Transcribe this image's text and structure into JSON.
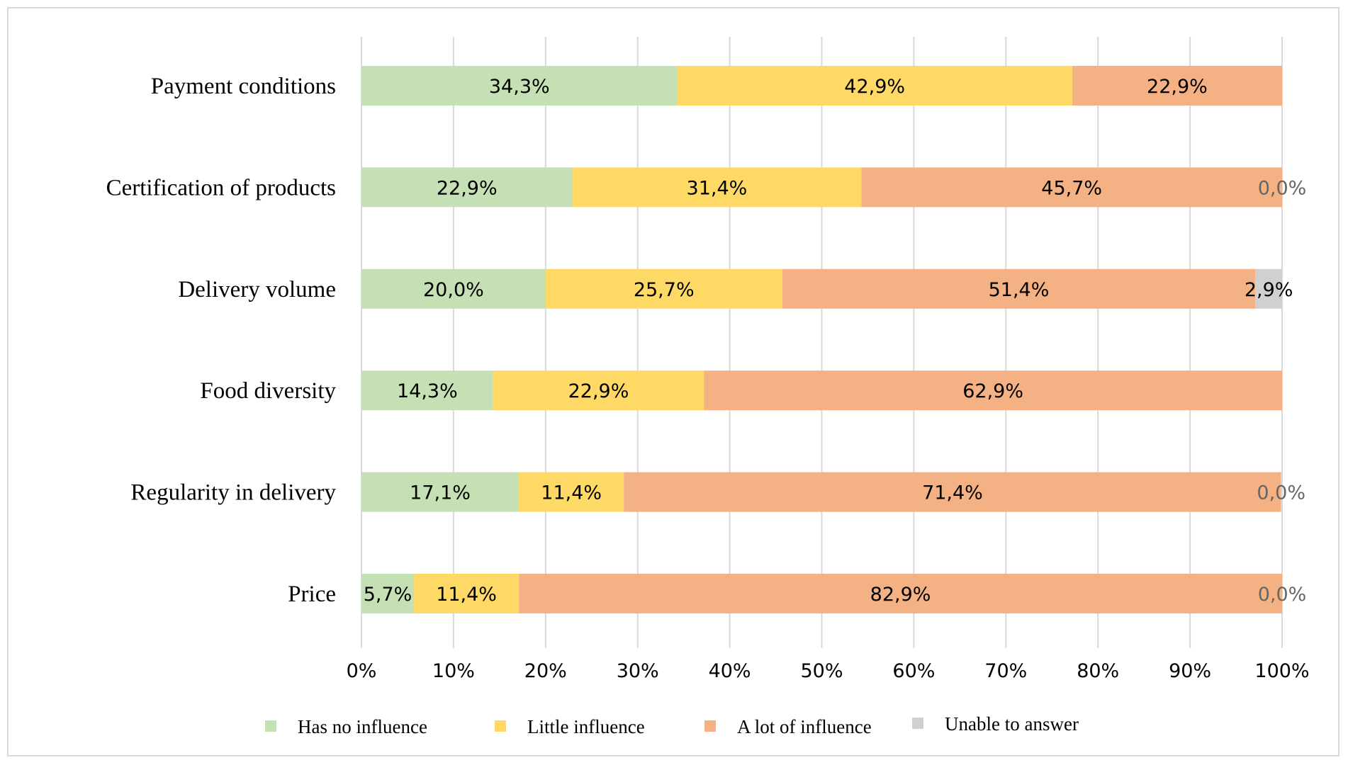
{
  "chart_data": {
    "type": "bar",
    "orientation": "horizontal",
    "stacked": "percent",
    "categories": [
      "Payment conditions",
      "Certification of products",
      "Delivery volume",
      "Food diversity",
      "Regularity in delivery",
      "Price"
    ],
    "series": [
      {
        "name": "Has no influence",
        "color": "#c5e0b4",
        "values": [
          34.3,
          22.9,
          20.0,
          14.3,
          17.1,
          5.7
        ],
        "labels": [
          "34,3%",
          "22,9%",
          "20,0%",
          "14,3%",
          "17,1%",
          "5,7%"
        ]
      },
      {
        "name": "Little influence",
        "color": "#ffd966",
        "values": [
          42.9,
          31.4,
          25.7,
          22.9,
          11.4,
          11.4
        ],
        "labels": [
          "42,9%",
          "31,4%",
          "25,7%",
          "22,9%",
          "11,4%",
          "11,4%"
        ]
      },
      {
        "name": "A lot of influence",
        "color": "#f4b183",
        "values": [
          22.9,
          45.7,
          51.4,
          62.9,
          71.4,
          82.9
        ],
        "labels": [
          "22,9%",
          "45,7%",
          "51,4%",
          "62,9%",
          "71,4%",
          "82,9%"
        ]
      },
      {
        "name": "Unable to answer",
        "color": "#d0d0d0",
        "values": [
          null,
          0.0,
          2.9,
          null,
          0.0,
          0.0
        ],
        "labels": [
          null,
          "0,0%",
          "2,9%",
          null,
          "0,0%",
          "0,0%"
        ]
      }
    ],
    "xlim": [
      0,
      100
    ],
    "xticks": [
      "0%",
      "10%",
      "20%",
      "30%",
      "40%",
      "50%",
      "60%",
      "70%",
      "80%",
      "90%",
      "100%"
    ],
    "grid": true,
    "legend_position": "bottom",
    "title": "",
    "xlabel": "",
    "ylabel": ""
  }
}
